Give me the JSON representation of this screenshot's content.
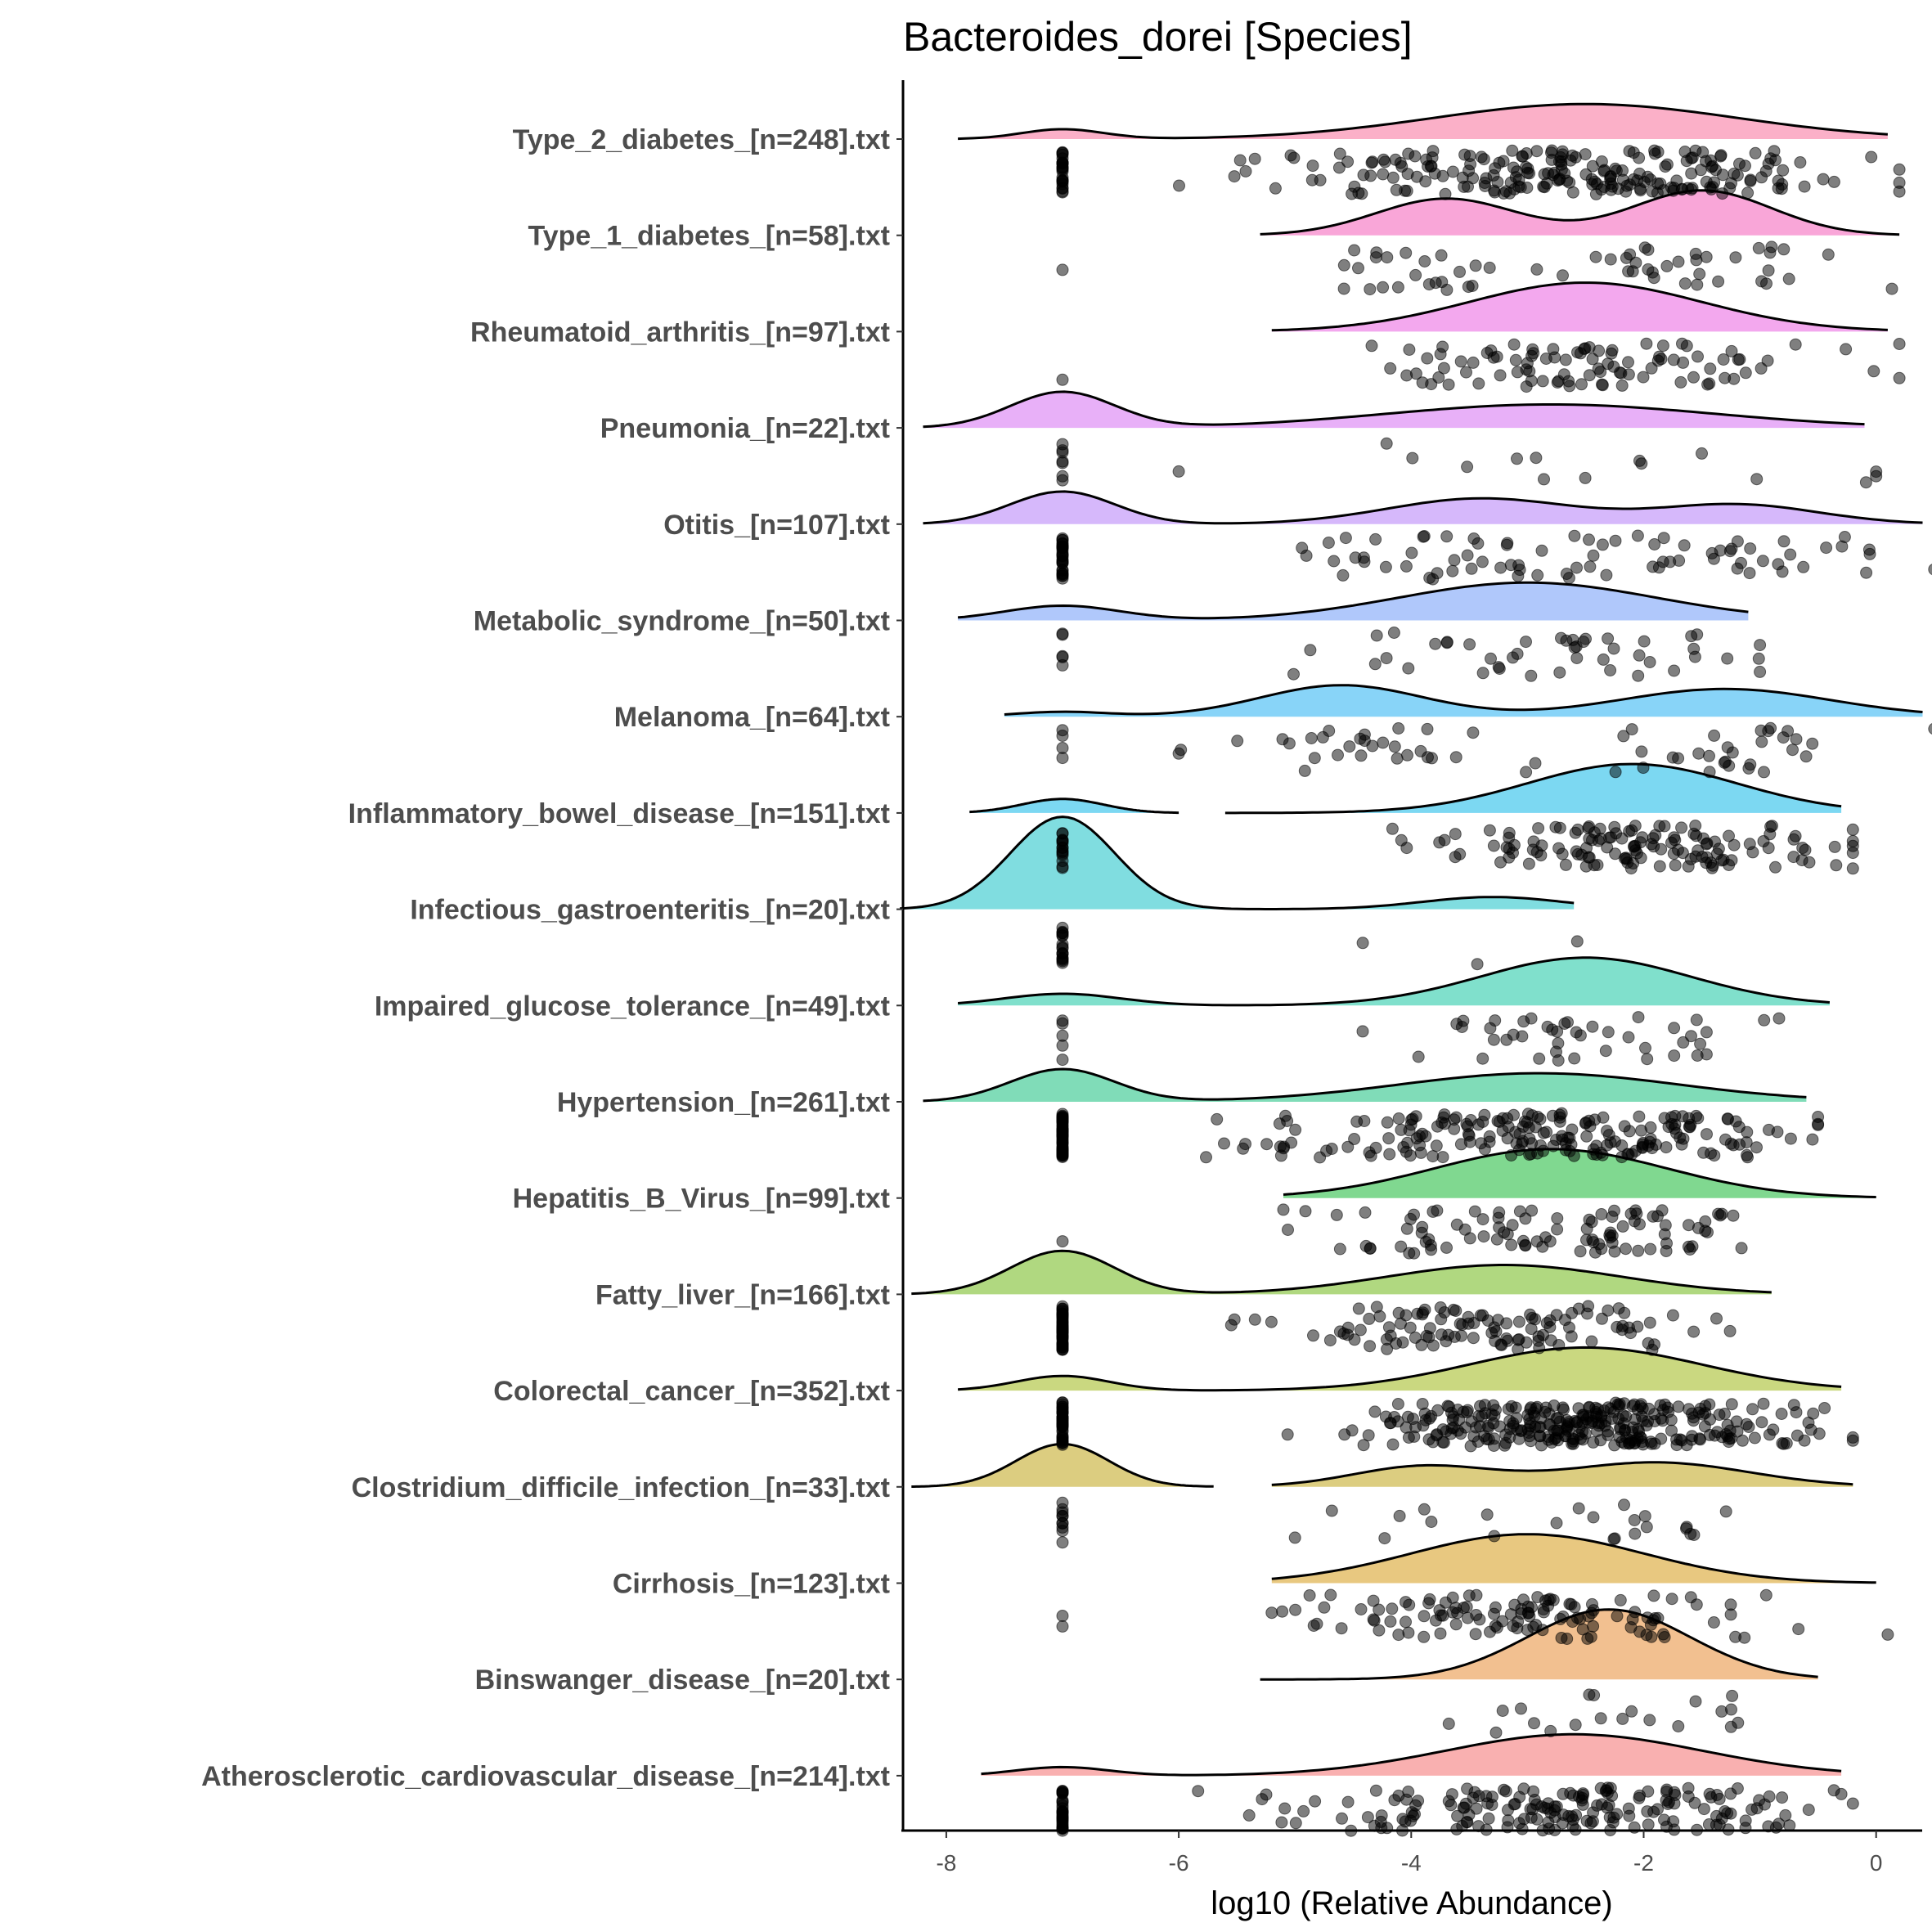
{
  "chart_data": {
    "type": "ridgeline-with-jittered-points",
    "title": "Bacteroides_dorei [Species]",
    "xlabel": "log10 (Relative Abundance)",
    "ylabel": "",
    "xlim": [
      -8.4,
      0.45
    ],
    "x_ticks": [
      -8,
      -6,
      -4,
      -2,
      0
    ],
    "x_tick_labels": [
      "-8",
      "-6",
      "-4",
      "-2",
      "0"
    ],
    "grid": false,
    "legend": "none",
    "zero_floor_value": -7,
    "groups": [
      {
        "label": "Type_2_diabetes_[n=248].txt",
        "n": 248,
        "color": "#fbb0c8",
        "range": [
          [
            -7.9,
            0.1
          ]
        ],
        "components": [
          [
            -7,
            0.35,
            0.07
          ],
          [
            -2.5,
            1.3,
            0.93
          ]
        ],
        "zero_count": 25
      },
      {
        "label": "Type_1_diabetes_[n=58].txt",
        "n": 58,
        "color": "#f9a6d8",
        "range": [
          [
            -5.3,
            0.2
          ]
        ],
        "components": [
          [
            -3.7,
            0.6,
            0.45
          ],
          [
            -1.5,
            0.6,
            0.55
          ]
        ],
        "zero_count": 1
      },
      {
        "label": "Rheumatoid_arthritis_[n=97].txt",
        "n": 97,
        "color": "#f3a8ee",
        "range": [
          [
            -5.2,
            0.1
          ]
        ],
        "components": [
          [
            -2.5,
            1.0,
            1
          ]
        ],
        "zero_count": 1
      },
      {
        "label": "Pneumonia_[n=22].txt",
        "n": 22,
        "color": "#e8b0f8",
        "range": [
          [
            -8.2,
            -0.1
          ]
        ],
        "components": [
          [
            -7,
            0.45,
            0.33
          ],
          [
            -2.8,
            1.4,
            0.67
          ]
        ],
        "zero_count": 7
      },
      {
        "label": "Otitis_[n=107].txt",
        "n": 107,
        "color": "#d6b8fb",
        "range": [
          [
            -8.2,
            0.4
          ]
        ],
        "components": [
          [
            -7,
            0.45,
            0.3
          ],
          [
            -3.4,
            0.8,
            0.42
          ],
          [
            -1.2,
            0.7,
            0.28
          ]
        ],
        "zero_count": 30
      },
      {
        "label": "Metabolic_syndrome_[n=50].txt",
        "n": 50,
        "color": "#b0c8fb",
        "range": [
          [
            -7.9,
            -1.1
          ]
        ],
        "components": [
          [
            -7,
            0.5,
            0.15
          ],
          [
            -3.0,
            1.1,
            0.85
          ]
        ],
        "zero_count": 5
      },
      {
        "label": "Melanoma_[n=64].txt",
        "n": 64,
        "color": "#88d4f8",
        "range": [
          [
            -7.5,
            0.4
          ]
        ],
        "components": [
          [
            -7,
            0.4,
            0.04
          ],
          [
            -4.6,
            0.7,
            0.45
          ],
          [
            -1.3,
            0.9,
            0.51
          ]
        ],
        "zero_count": 4
      },
      {
        "label": "Inflammatory_bowel_disease_[n=151].txt",
        "n": 151,
        "color": "#7cd8f2",
        "range": [
          [
            -7.8,
            -6.0
          ],
          [
            -5.6,
            -0.3
          ]
        ],
        "components": [
          [
            -7,
            0.35,
            0.1
          ],
          [
            -2.1,
            0.9,
            0.9
          ]
        ],
        "zero_count": 15
      },
      {
        "label": "Infectious_gastroenteritis_[n=20].txt",
        "n": 20,
        "color": "#80dde0",
        "range": [
          [
            -8.4,
            -2.6
          ]
        ],
        "components": [
          [
            -7,
            0.45,
            0.85
          ],
          [
            -3.3,
            0.6,
            0.15
          ]
        ],
        "zero_count": 17
      },
      {
        "label": "Impaired_glucose_tolerance_[n=49].txt",
        "n": 49,
        "color": "#80e0cc",
        "range": [
          [
            -7.9,
            -0.4
          ]
        ],
        "components": [
          [
            -7,
            0.5,
            0.12
          ],
          [
            -2.5,
            0.9,
            0.88
          ]
        ],
        "zero_count": 5
      },
      {
        "label": "Hypertension_[n=261].txt",
        "n": 261,
        "color": "#80dcb8",
        "range": [
          [
            -8.2,
            -0.6
          ]
        ],
        "components": [
          [
            -7,
            0.45,
            0.3
          ],
          [
            -2.9,
            1.2,
            0.7
          ]
        ],
        "zero_count": 60
      },
      {
        "label": "Hepatitis_B_Virus_[n=99].txt",
        "n": 99,
        "color": "#80d890",
        "range": [
          [
            -5.1,
            0.0
          ]
        ],
        "components": [
          [
            -2.8,
            1.0,
            1
          ]
        ],
        "zero_count": 1
      },
      {
        "label": "Fatty_liver_[n=166].txt",
        "n": 166,
        "color": "#b0d880",
        "range": [
          [
            -8.3,
            -0.9
          ]
        ],
        "components": [
          [
            -7,
            0.45,
            0.4
          ],
          [
            -3.2,
            1.0,
            0.6
          ]
        ],
        "zero_count": 55
      },
      {
        "label": "Colorectal_cancer_[n=352].txt",
        "n": 352,
        "color": "#cad880",
        "range": [
          [
            -7.9,
            -0.3
          ]
        ],
        "components": [
          [
            -7,
            0.4,
            0.12
          ],
          [
            -2.5,
            1.0,
            0.88
          ]
        ],
        "zero_count": 40
      },
      {
        "label": "Clostridium_difficile_infection_[n=33].txt",
        "n": 33,
        "color": "#dccd80",
        "range": [
          [
            -8.3,
            -5.7
          ],
          [
            -5.2,
            -0.2
          ]
        ],
        "components": [
          [
            -7,
            0.4,
            0.35
          ],
          [
            -3.9,
            0.6,
            0.25
          ],
          [
            -1.9,
            0.8,
            0.4
          ]
        ],
        "zero_count": 10
      },
      {
        "label": "Cirrhosis_[n=123].txt",
        "n": 123,
        "color": "#e8c880",
        "range": [
          [
            -5.2,
            0.0
          ]
        ],
        "components": [
          [
            -3.0,
            1.0,
            1
          ]
        ],
        "zero_count": 2
      },
      {
        "label": "Binswanger_disease_[n=20].txt",
        "n": 20,
        "color": "#f2c090",
        "range": [
          [
            -5.3,
            -0.5
          ]
        ],
        "components": [
          [
            -2.3,
            0.7,
            1
          ]
        ],
        "zero_count": 0
      },
      {
        "label": "Atherosclerotic_cardiovascular_disease_[n=214].txt",
        "n": 214,
        "color": "#f9b0b0",
        "range": [
          [
            -7.7,
            -0.3
          ]
        ],
        "components": [
          [
            -7,
            0.4,
            0.07
          ],
          [
            -2.6,
            1.1,
            0.93
          ]
        ],
        "zero_count": 30
      }
    ]
  }
}
